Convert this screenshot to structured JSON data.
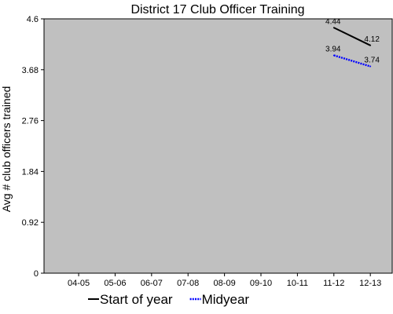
{
  "chart_data": {
    "type": "line",
    "title": "District 17 Club Officer Training",
    "xlabel": "",
    "ylabel": "Avg # club officers trained",
    "categories": [
      "04-05",
      "05-06",
      "06-07",
      "07-08",
      "08-09",
      "09-10",
      "10-11",
      "11-12",
      "12-13"
    ],
    "yticks": [
      "0",
      "0.92",
      "1.84",
      "2.76",
      "3.68",
      "4.6"
    ],
    "ylim": [
      0,
      4.6
    ],
    "grid": false,
    "legend": "bottom",
    "background": "#c0c0c0",
    "series": [
      {
        "name": "Start of year",
        "color": "#000000",
        "style": "solid",
        "values": [
          null,
          null,
          null,
          null,
          null,
          null,
          null,
          4.44,
          4.12
        ],
        "labels": [
          null,
          null,
          null,
          null,
          null,
          null,
          null,
          "4.44",
          "4.12"
        ]
      },
      {
        "name": "Midyear",
        "color": "#0000ff",
        "style": "dotted",
        "values": [
          null,
          null,
          null,
          null,
          null,
          null,
          null,
          3.94,
          3.74
        ],
        "labels": [
          null,
          null,
          null,
          null,
          null,
          null,
          null,
          "3.94",
          "3.74"
        ]
      }
    ]
  }
}
